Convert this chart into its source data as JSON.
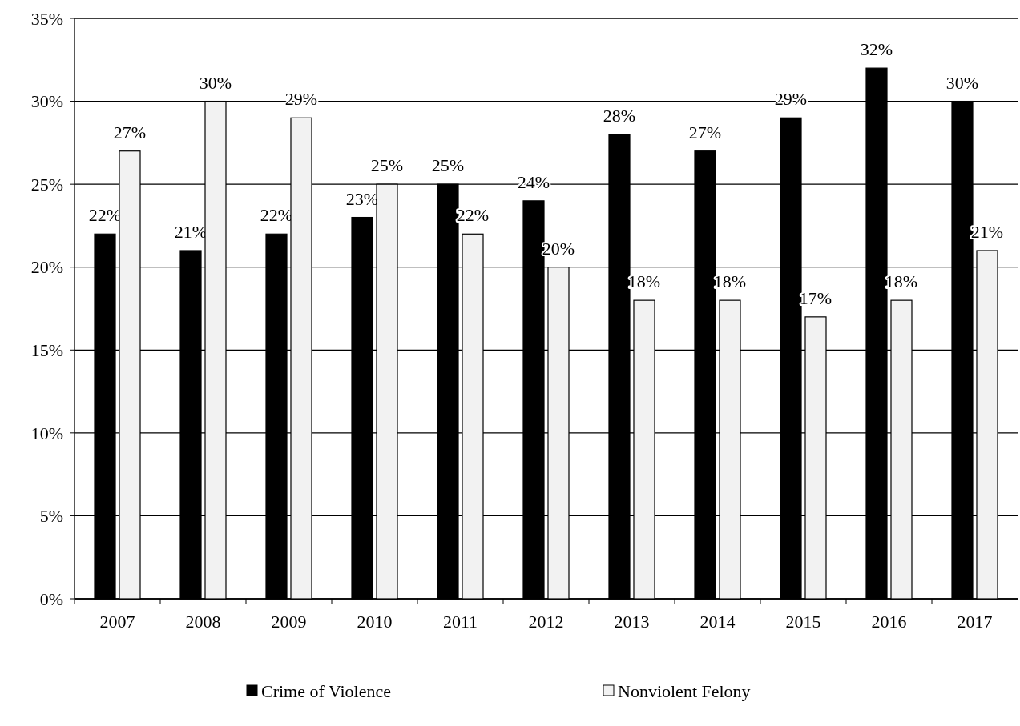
{
  "chart_data": {
    "type": "bar",
    "categories": [
      "2007",
      "2008",
      "2009",
      "2010",
      "2011",
      "2012",
      "2013",
      "2014",
      "2015",
      "2016",
      "2017"
    ],
    "series": [
      {
        "name": "Crime of Violence",
        "color": "#000000",
        "values": [
          22,
          21,
          22,
          23,
          25,
          24,
          28,
          27,
          29,
          32,
          30
        ],
        "value_labels": [
          "22%",
          "21%",
          "22%",
          "23%",
          "25%",
          "24%",
          "28%",
          "27%",
          "29%",
          "32%",
          "30%"
        ]
      },
      {
        "name": "Nonviolent Felony",
        "color": "#f2f2f2",
        "values": [
          27,
          30,
          29,
          25,
          22,
          20,
          18,
          18,
          17,
          18,
          21
        ],
        "value_labels": [
          "27%",
          "30%",
          "29%",
          "25%",
          "22%",
          "20%",
          "18%",
          "18%",
          "17%",
          "18%",
          "21%"
        ]
      }
    ],
    "ylim": [
      0,
      35
    ],
    "yticks": [
      {
        "value": 0,
        "label": "0%"
      },
      {
        "value": 5,
        "label": "5%"
      },
      {
        "value": 10,
        "label": "10%"
      },
      {
        "value": 15,
        "label": "15%"
      },
      {
        "value": 20,
        "label": "20%"
      },
      {
        "value": 25,
        "label": "25%"
      },
      {
        "value": 30,
        "label": "30%"
      },
      {
        "value": 35,
        "label": "35%"
      }
    ],
    "grid": "y",
    "legend": "bottom"
  }
}
